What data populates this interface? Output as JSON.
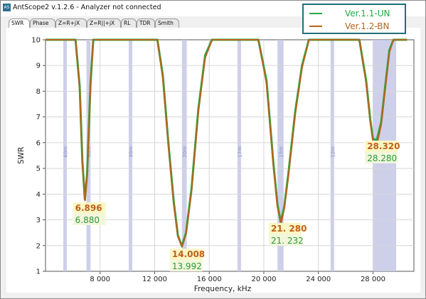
{
  "window": {
    "title": "AntScope2 v.1.2.6 - Analyzer not connected",
    "icon": "AS"
  },
  "tabs": [
    {
      "label": "SWR",
      "active": true
    },
    {
      "label": "Phase",
      "active": false
    },
    {
      "label": "Z=R+jX",
      "active": false
    },
    {
      "label": "Z=R||+jX",
      "active": false
    },
    {
      "label": "RL",
      "active": false
    },
    {
      "label": "TDR",
      "active": false
    },
    {
      "label": "Smith",
      "active": false
    }
  ],
  "legend": [
    {
      "name": "Ver.1.1-UN",
      "color": "#22aa44"
    },
    {
      "name": "Ver.1.2-BN",
      "color": "#b5651d"
    }
  ],
  "chart_data": {
    "type": "line",
    "title": "",
    "xlabel": "Frequency, kHz",
    "ylabel": "SWR",
    "xlim": [
      4000,
      31000
    ],
    "ylim": [
      1,
      10
    ],
    "xticks": [
      8000,
      12000,
      16000,
      20000,
      24000,
      28000
    ],
    "xtick_labels": [
      "8 000",
      "12 000",
      "16 000",
      "20 000",
      "24 000",
      "28 000"
    ],
    "yticks": [
      1,
      2,
      3,
      4,
      5,
      6,
      7,
      8,
      9,
      10
    ],
    "bands": [
      {
        "label": "60m",
        "from": 5300,
        "to": 5400
      },
      {
        "label": "40m",
        "from": 7000,
        "to": 7300
      },
      {
        "label": "30m",
        "from": 10100,
        "to": 10150
      },
      {
        "label": "20m",
        "from": 14000,
        "to": 14350
      },
      {
        "label": "17m",
        "from": 18068,
        "to": 18168
      },
      {
        "label": "15m",
        "from": 21000,
        "to": 21450
      },
      {
        "label": "12m",
        "from": 24890,
        "to": 24990
      },
      {
        "label": "m",
        "from": 28000,
        "to": 29700
      }
    ],
    "series": [
      {
        "name": "Ver.1.1-UN",
        "color": "#22aa44",
        "x": [
          4000,
          6200,
          6500,
          6700,
          6880,
          7050,
          7300,
          7500,
          12200,
          12600,
          13000,
          13400,
          13700,
          13992,
          14300,
          14700,
          15200,
          15700,
          16200,
          19600,
          20200,
          20700,
          21000,
          21232,
          21500,
          21800,
          22300,
          22800,
          23300,
          23700,
          27000,
          27500,
          27800,
          28000,
          28280,
          28600,
          28900,
          29200,
          29500,
          30500
        ],
        "y": [
          10,
          10,
          8.2,
          5.3,
          3.8,
          4.8,
          8.3,
          10,
          10,
          8.6,
          6.0,
          3.7,
          2.4,
          1.98,
          2.5,
          4.2,
          7.3,
          9.4,
          10,
          10,
          8.4,
          5.2,
          3.6,
          2.92,
          3.5,
          4.8,
          7.2,
          9.0,
          10,
          10,
          10,
          8.4,
          6.9,
          6.15,
          6.1,
          6.8,
          8.2,
          9.6,
          10,
          10
        ]
      },
      {
        "name": "Ver.1.2-BN",
        "color": "#b5651d",
        "x": [
          4000,
          6200,
          6500,
          6700,
          6896,
          7050,
          7300,
          7500,
          12200,
          12600,
          13000,
          13400,
          13700,
          14008,
          14300,
          14700,
          15200,
          15700,
          16200,
          19600,
          20200,
          20700,
          21000,
          21280,
          21500,
          21800,
          22300,
          22800,
          23300,
          23700,
          27000,
          27500,
          27800,
          28000,
          28320,
          28600,
          28900,
          29200,
          29500,
          30500
        ],
        "y": [
          10,
          10,
          8.1,
          5.2,
          3.75,
          4.7,
          8.2,
          10,
          10,
          8.5,
          5.9,
          3.6,
          2.35,
          1.95,
          2.45,
          4.1,
          7.2,
          9.3,
          10,
          10,
          8.3,
          5.1,
          3.5,
          2.88,
          3.45,
          4.7,
          7.1,
          8.9,
          10,
          10,
          10,
          8.3,
          6.8,
          6.05,
          6.0,
          6.7,
          8.1,
          9.5,
          10,
          10
        ]
      }
    ],
    "annotations": [
      {
        "text_orange": "6.896",
        "text_green": "6.880",
        "x": 6900,
        "y": 3.35
      },
      {
        "text_orange": "14.008",
        "text_green": "13.992",
        "x": 14000,
        "y": 1.55
      },
      {
        "text_orange": "21. 280",
        "text_green": "21. 232",
        "x": 21250,
        "y": 2.55
      },
      {
        "text_orange": "28.320",
        "text_green": "28.280",
        "x": 28300,
        "y": 5.75
      }
    ],
    "grid": true,
    "legend_position": "top-right"
  }
}
